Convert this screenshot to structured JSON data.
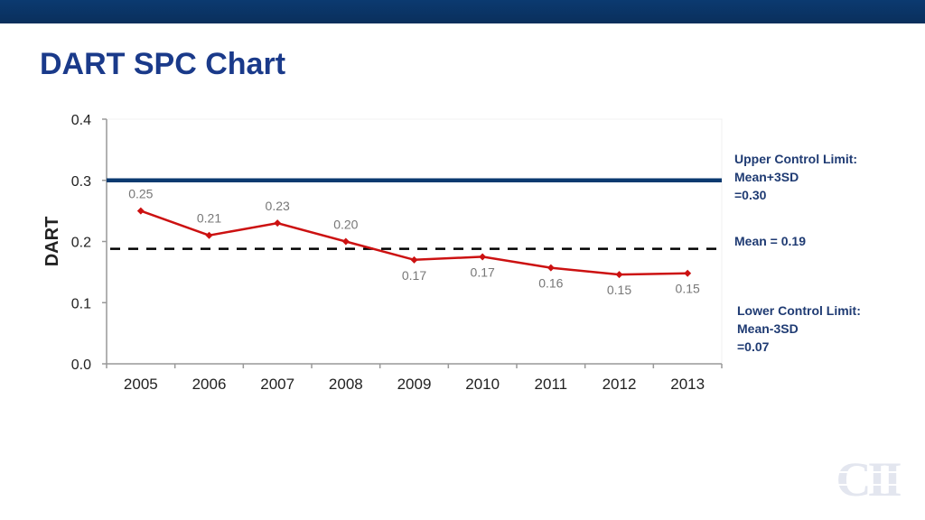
{
  "slide": {
    "title": "DART SPC Chart"
  },
  "annotations": {
    "ucl": [
      "Upper Control Limit:",
      "Mean+3SD",
      "=0.30"
    ],
    "mean": [
      "Mean = 0.19"
    ],
    "lcl": [
      "Lower Control Limit:",
      "Mean-3SD",
      "=0.07"
    ]
  },
  "logo": {
    "text": "CII"
  },
  "colors": {
    "title": "#1a3a8a",
    "series": "#cc1111",
    "ucl": "#0b3a70",
    "mean": "#000000",
    "annotation": "#1f3b73",
    "top_band": "#0b3a70"
  },
  "chart_data": {
    "type": "line",
    "title": "",
    "xlabel": "",
    "ylabel": "DART",
    "categories": [
      "2005",
      "2006",
      "2007",
      "2008",
      "2009",
      "2010",
      "2011",
      "2012",
      "2013"
    ],
    "series": [
      {
        "values": [
          0.25,
          0.21,
          0.23,
          0.2,
          0.17,
          0.175,
          0.157,
          0.146,
          0.148
        ],
        "labels": [
          "0.25",
          "0.21",
          "0.23",
          "0.20",
          "0.17",
          "0.17",
          "0.16",
          "0.15",
          "0.15"
        ]
      }
    ],
    "ylim": [
      0,
      0.4
    ],
    "yticks": [
      0.0,
      0.1,
      0.2,
      0.3,
      0.4
    ],
    "ytick_labels": [
      "0.0",
      "0.1",
      "0.2",
      "0.3",
      "0.4"
    ],
    "reference_lines": [
      {
        "label": "Upper Control Limit",
        "value": 0.3,
        "style": "solid"
      },
      {
        "label": "Mean",
        "value": 0.188,
        "style": "dashed"
      }
    ],
    "grid": false,
    "legend": "none"
  }
}
